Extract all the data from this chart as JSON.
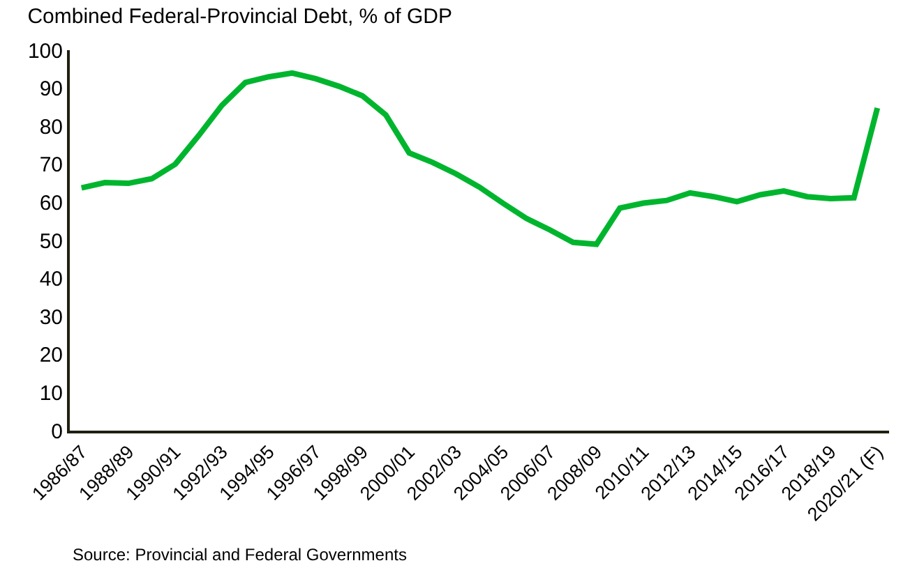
{
  "chart_data": {
    "type": "line",
    "title": "Combined Federal-Provincial Debt, % of GDP",
    "categories": [
      "1986/87",
      null,
      "1988/89",
      null,
      "1990/91",
      null,
      "1992/93",
      null,
      "1994/95",
      null,
      "1996/97",
      null,
      "1998/99",
      null,
      "2000/01",
      null,
      "2002/03",
      null,
      "2004/05",
      null,
      "2006/07",
      null,
      "2008/09",
      null,
      "2010/11",
      null,
      "2012/13",
      null,
      "2014/15",
      null,
      "2016/17",
      null,
      "2018/19",
      null,
      "2020/21 (F)"
    ],
    "series": [
      {
        "color": "#00b52e",
        "values": [
          63.8,
          65.2,
          65,
          66.2,
          70,
          77.5,
          85.5,
          91.5,
          93,
          94,
          92.5,
          90.5,
          88,
          83,
          73,
          70.5,
          67.5,
          64,
          59.8,
          55.8,
          52.8,
          49.5,
          49,
          58.5,
          59.8,
          60.5,
          62.5,
          61.5,
          60.2,
          62,
          63,
          61.5,
          61,
          61.2,
          84.8
        ]
      }
    ],
    "ylim": [
      0,
      100
    ],
    "yticks": [
      0,
      10,
      20,
      30,
      40,
      50,
      60,
      70,
      80,
      90,
      100
    ],
    "grid": false,
    "marker": "none",
    "line_style": "solid",
    "annotations": [
      "Source: Provincial and Federal Governments"
    ]
  }
}
